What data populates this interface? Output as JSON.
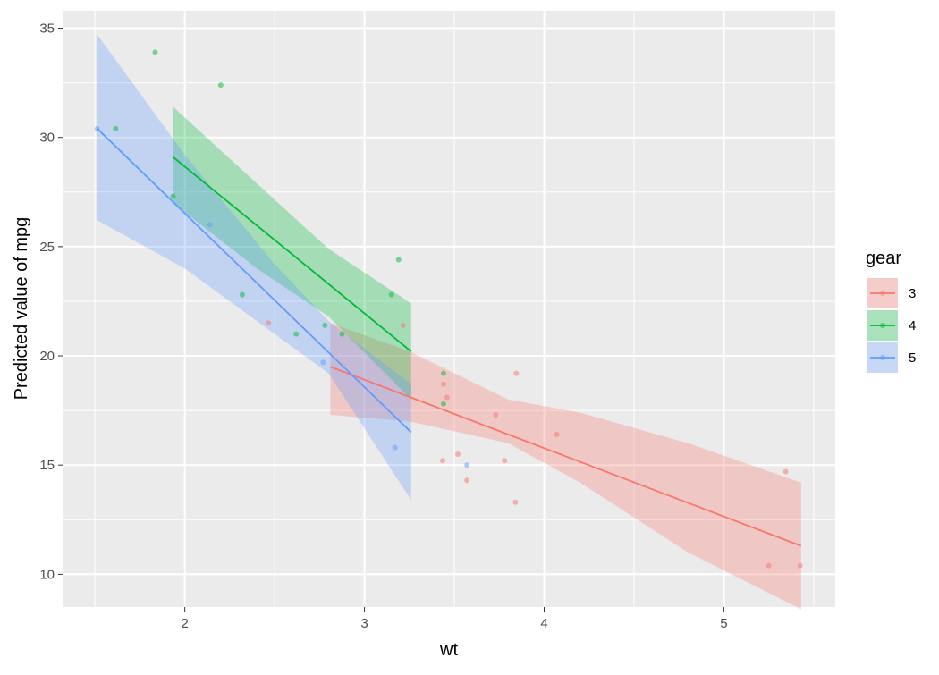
{
  "chart_data": {
    "type": "line",
    "xlabel": "wt",
    "ylabel": "Predicted value of mpg",
    "xlim": [
      1.32,
      5.62
    ],
    "ylim": [
      8.5,
      35.8
    ],
    "x_ticks": [
      2,
      3,
      4,
      5
    ],
    "y_ticks": [
      10,
      15,
      20,
      25,
      30,
      35
    ],
    "grid": true,
    "legend": {
      "title": "gear",
      "placement": "right"
    },
    "series": [
      {
        "name": "3",
        "color": "#F8766D",
        "line": [
          [
            2.81,
            19.5
          ],
          [
            5.43,
            11.3
          ]
        ],
        "ribbon": [
          [
            2.81,
            21.5,
            17.3
          ],
          [
            3.25,
            20.2,
            17.0
          ],
          [
            3.8,
            18.0,
            16.0
          ],
          [
            4.2,
            17.4,
            14.2
          ],
          [
            4.8,
            16.0,
            11.0
          ],
          [
            5.43,
            14.2,
            8.4
          ]
        ],
        "points": [
          [
            2.465,
            21.5
          ],
          [
            3.215,
            21.4
          ],
          [
            3.44,
            18.7
          ],
          [
            3.46,
            18.1
          ],
          [
            3.57,
            14.3
          ],
          [
            4.07,
            16.4
          ],
          [
            3.73,
            17.3
          ],
          [
            3.78,
            15.2
          ],
          [
            5.25,
            10.4
          ],
          [
            5.424,
            10.4
          ],
          [
            5.345,
            14.7
          ],
          [
            3.52,
            15.5
          ],
          [
            3.435,
            15.2
          ],
          [
            3.84,
            13.3
          ],
          [
            3.845,
            19.2
          ]
        ]
      },
      {
        "name": "4",
        "color": "#00BA38",
        "line": [
          [
            1.935,
            29.1
          ],
          [
            3.26,
            20.2
          ]
        ],
        "ribbon": [
          [
            1.935,
            31.4,
            27.0
          ],
          [
            2.4,
            27.9,
            24.0
          ],
          [
            2.8,
            24.9,
            21.8
          ],
          [
            3.26,
            22.4,
            18.0
          ]
        ],
        "points": [
          [
            2.62,
            21.0
          ],
          [
            2.875,
            21.0
          ],
          [
            2.32,
            22.8
          ],
          [
            3.19,
            24.4
          ],
          [
            3.15,
            22.8
          ],
          [
            3.44,
            19.2
          ],
          [
            3.44,
            17.8
          ],
          [
            2.2,
            32.4
          ],
          [
            1.615,
            30.4
          ],
          [
            1.835,
            33.9
          ],
          [
            2.78,
            21.4
          ],
          [
            1.935,
            27.3
          ]
        ]
      },
      {
        "name": "5",
        "color": "#619CFF",
        "line": [
          [
            1.513,
            30.4
          ],
          [
            3.26,
            16.5
          ]
        ],
        "ribbon": [
          [
            1.513,
            34.7,
            26.2
          ],
          [
            2.0,
            29.2,
            24.0
          ],
          [
            2.5,
            24.2,
            21.0
          ],
          [
            2.8,
            21.6,
            19.2
          ],
          [
            3.26,
            18.7,
            13.4
          ]
        ],
        "points": [
          [
            2.14,
            26.0
          ],
          [
            1.513,
            30.4
          ],
          [
            3.17,
            15.8
          ],
          [
            2.77,
            19.7
          ],
          [
            3.57,
            15.0
          ]
        ]
      }
    ]
  }
}
